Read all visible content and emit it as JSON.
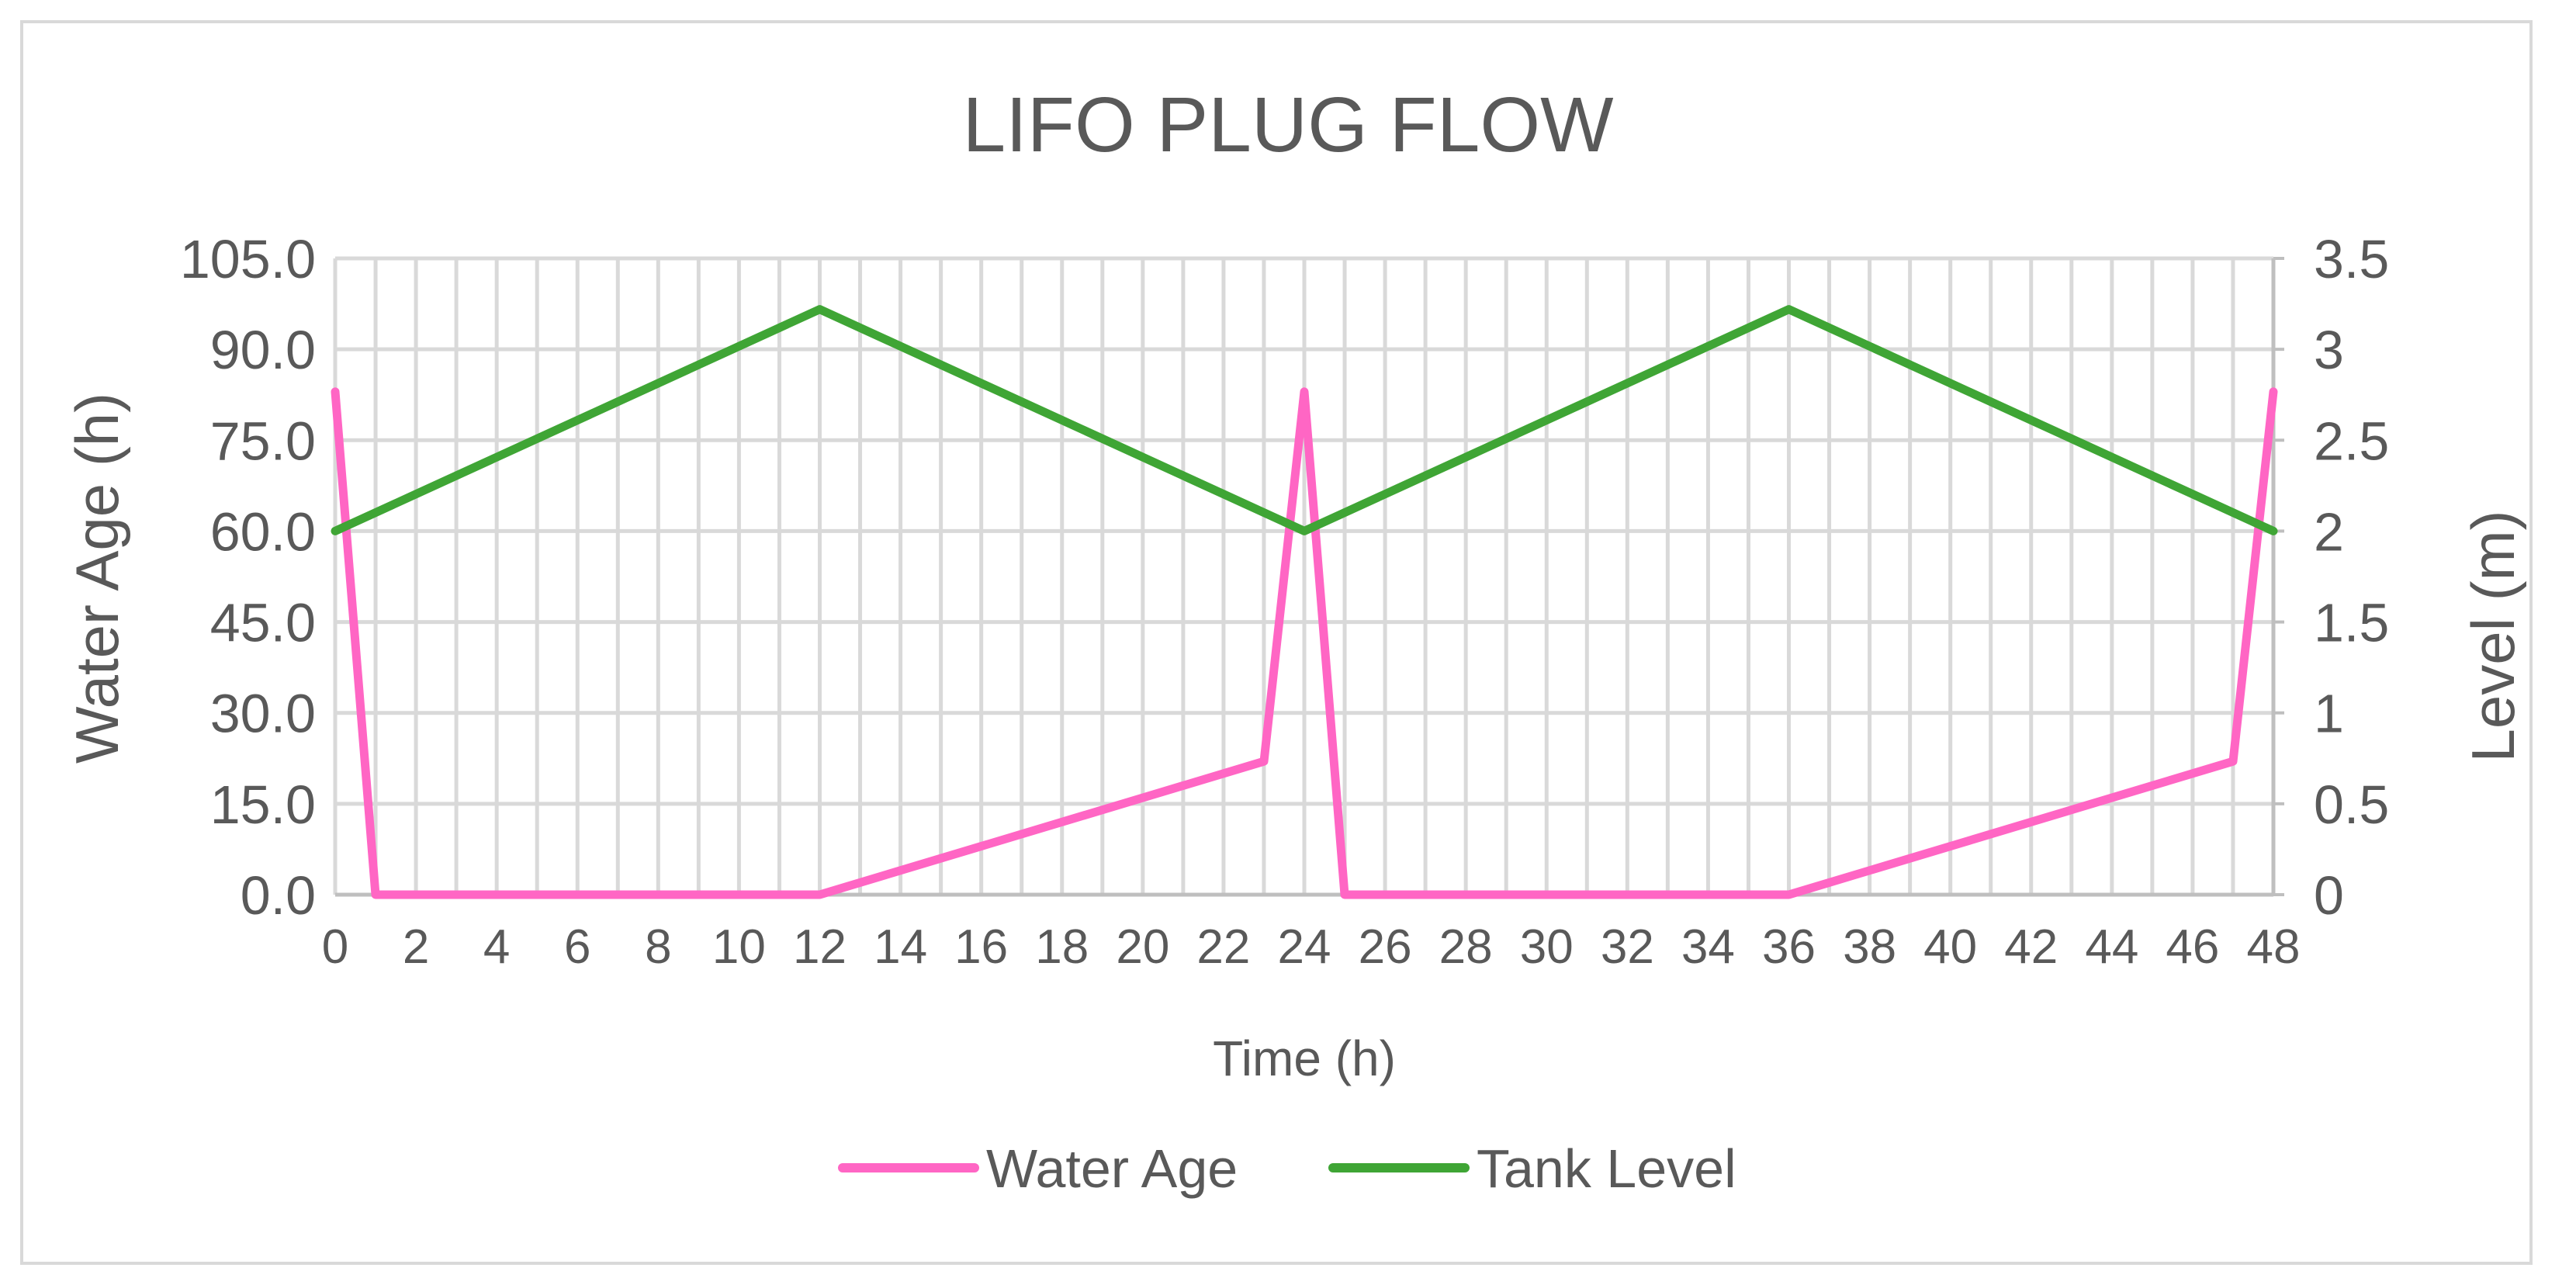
{
  "chart_data": {
    "type": "line",
    "title": "LIFO PLUG FLOW",
    "xlabel": "Time (h)",
    "ylabel": "Water Age (h)",
    "y2label": "Level (m)",
    "xlim": [
      0,
      48
    ],
    "ylim": [
      0,
      105
    ],
    "y2lim": [
      0,
      3.5
    ],
    "x_ticks": [
      "0",
      "2",
      "4",
      "6",
      "8",
      "10",
      "12",
      "14",
      "16",
      "18",
      "20",
      "22",
      "24",
      "26",
      "28",
      "30",
      "32",
      "34",
      "36",
      "38",
      "40",
      "42",
      "44",
      "46",
      "48"
    ],
    "y_ticks": [
      "0.0",
      "15.0",
      "30.0",
      "45.0",
      "60.0",
      "75.0",
      "90.0",
      "105.0"
    ],
    "y2_ticks": [
      "0",
      "0.5",
      "1",
      "1.5",
      "2",
      "2.5",
      "3",
      "3.5"
    ],
    "grid": true,
    "legend_position": "bottom",
    "series": [
      {
        "name": "Water Age",
        "axis": "left",
        "color": "#ff66c4",
        "x": [
          0,
          1,
          12,
          23,
          24,
          25,
          36,
          47,
          48
        ],
        "y": [
          83,
          0,
          0,
          22,
          83,
          0,
          0,
          22,
          83
        ]
      },
      {
        "name": "Tank Level",
        "axis": "right",
        "color": "#3fa535",
        "x": [
          0,
          12,
          24,
          36,
          48
        ],
        "y": [
          2.0,
          3.22,
          2.0,
          3.22,
          2.0
        ]
      }
    ]
  }
}
